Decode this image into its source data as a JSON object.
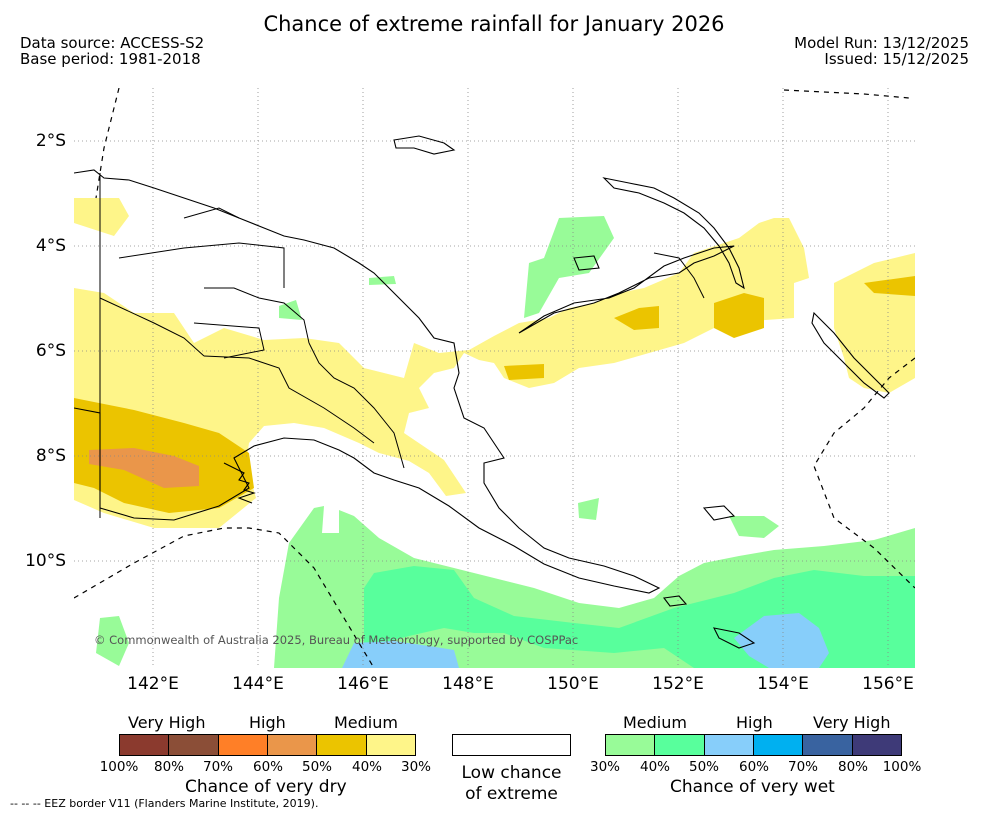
{
  "title": "Chance of extreme rainfall for January 2026",
  "meta": {
    "source": "Data source: ACCESS-S2",
    "base": "Base period: 1981-2018",
    "run": "Model Run: 13/12/2025",
    "issued": "Issued: 15/12/2025"
  },
  "axes": {
    "lat": [
      "2°S",
      "4°S",
      "6°S",
      "8°S",
      "10°S"
    ],
    "lon": [
      "142°E",
      "144°E",
      "146°E",
      "148°E",
      "150°E",
      "152°E",
      "154°E",
      "156°E"
    ]
  },
  "copyright": "© Commonwealth of Australia 2025, Bureau of Meteorology, supported by COSPPac",
  "legend": {
    "dry": {
      "labels": [
        "Very High",
        "High",
        "Medium"
      ],
      "colors": [
        "#8b3a2e",
        "#8b4e37",
        "#ff7f27",
        "#ea964a",
        "#ebc400",
        "#fef589"
      ],
      "ticks": [
        "100%",
        "80%",
        "70%",
        "60%",
        "50%",
        "40%",
        "30%"
      ],
      "caption": "Chance of very dry"
    },
    "low": {
      "caption": "Low chance\nof extreme"
    },
    "wet": {
      "labels": [
        "Medium",
        "High",
        "Very High"
      ],
      "colors": [
        "#98fb98",
        "#58ff9c",
        "#87cefa",
        "#00b0f0",
        "#3963a0",
        "#3e3a78"
      ],
      "ticks": [
        "30%",
        "40%",
        "50%",
        "60%",
        "70%",
        "80%",
        "100%"
      ],
      "caption": "Chance of very wet"
    }
  },
  "footnote": "--  --  -- EEZ border V11 (Flanders Marine Institute, 2019)."
}
